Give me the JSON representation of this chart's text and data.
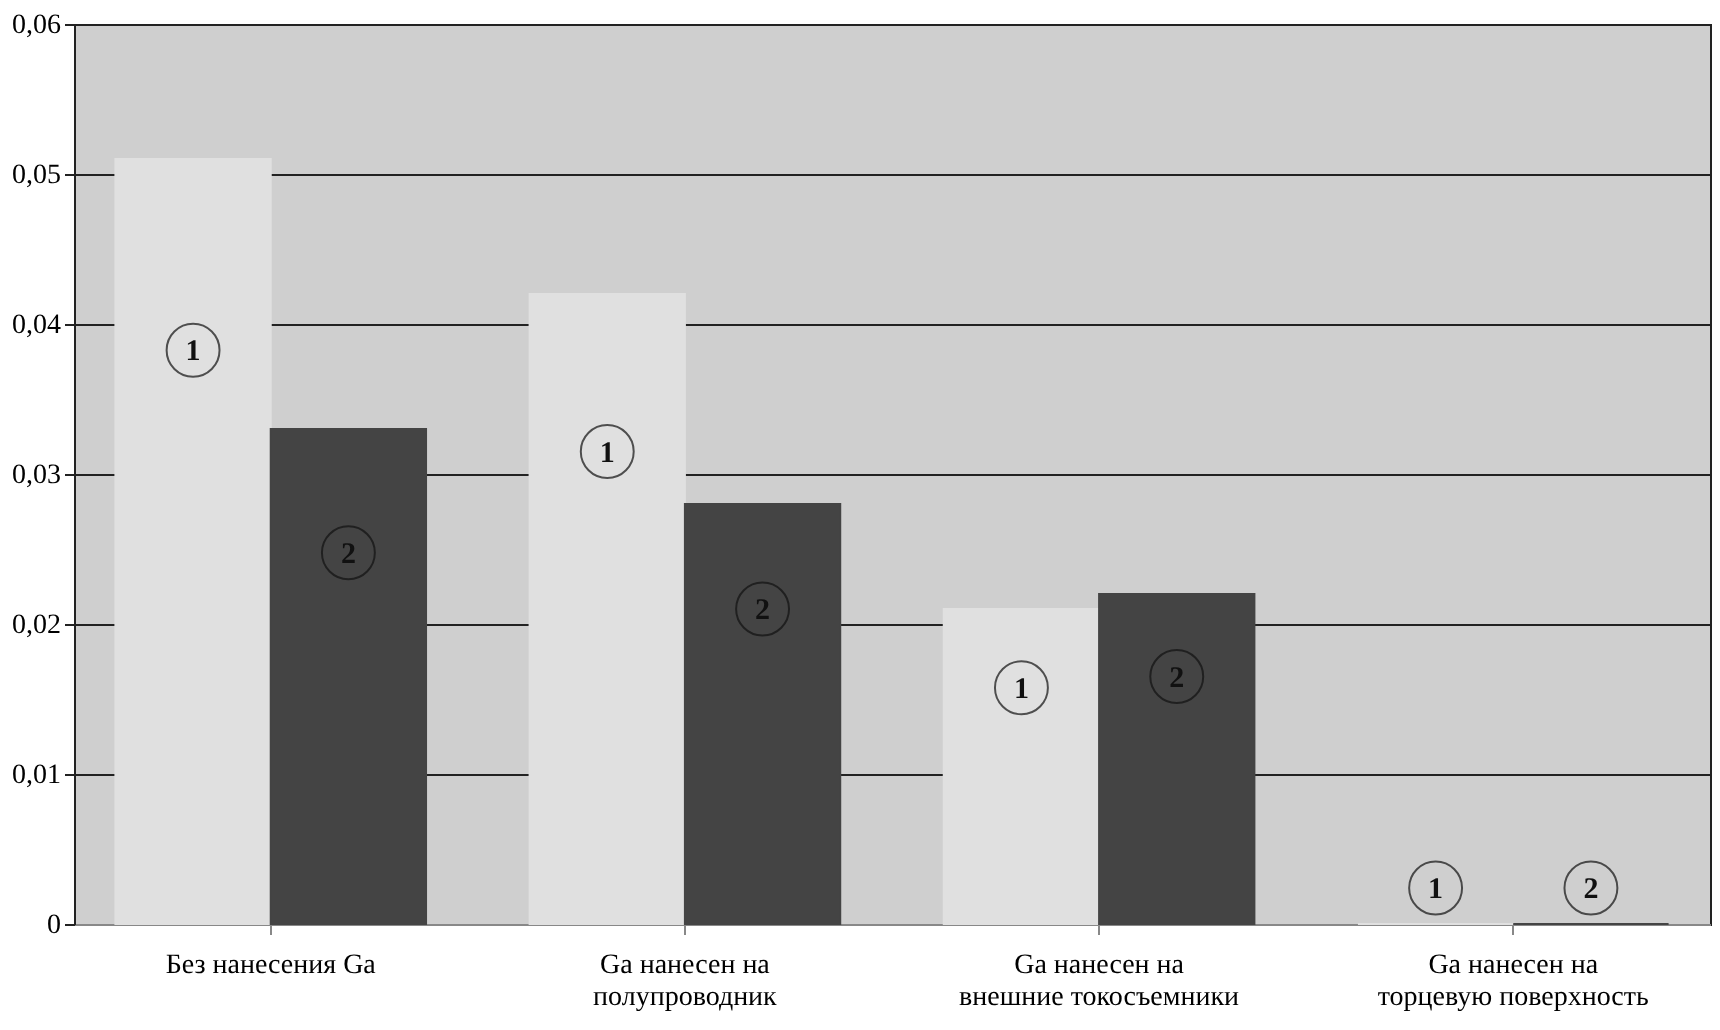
{
  "chart_data": {
    "type": "bar",
    "categories": [
      "Без нанесения Ga",
      "Ga нанесен на полупроводник",
      "Ga нанесен на внешние токосъемники",
      "Ga нанесен на торцевую поверхность"
    ],
    "series": [
      {
        "name": "1",
        "color": "#e0e0e0",
        "values": [
          0.051,
          0.042,
          0.021,
          0
        ]
      },
      {
        "name": "2",
        "color": "#444444",
        "values": [
          0.033,
          0.028,
          0.022,
          0
        ]
      }
    ],
    "ylim": [
      0,
      0.06
    ],
    "yticks": [
      {
        "value": 0,
        "label": "0"
      },
      {
        "value": 0.01,
        "label": "0,01"
      },
      {
        "value": 0.02,
        "label": "0,02"
      },
      {
        "value": 0.03,
        "label": "0,03"
      },
      {
        "value": 0.04,
        "label": "0,04"
      },
      {
        "value": 0.05,
        "label": "0,05"
      },
      {
        "value": 0.06,
        "label": "0,06"
      }
    ],
    "grid": "y",
    "legend": false
  }
}
